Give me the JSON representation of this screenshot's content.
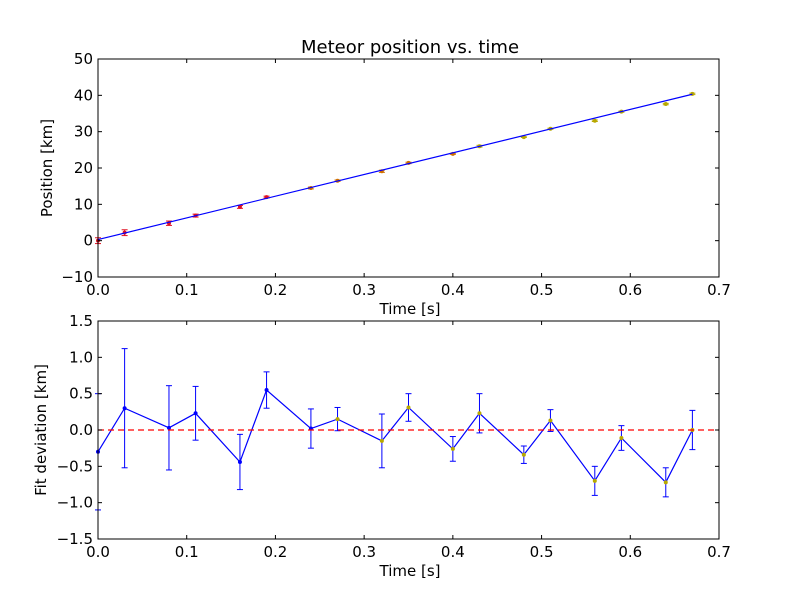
{
  "chart_data": [
    {
      "type": "scatter",
      "title": "Meteor position vs. time",
      "xlabel": "Time [s]",
      "ylabel": "Position [km]",
      "xlim": [
        0.0,
        0.7
      ],
      "ylim": [
        -10,
        50
      ],
      "xticks": [
        "0.0",
        "0.1",
        "0.2",
        "0.3",
        "0.4",
        "0.5",
        "0.6",
        "0.7"
      ],
      "yticks": [
        "−10",
        "0",
        "10",
        "20",
        "30",
        "40",
        "50"
      ],
      "xtick_values": [
        0.0,
        0.1,
        0.2,
        0.3,
        0.4,
        0.5,
        0.6,
        0.7
      ],
      "ytick_values": [
        -10,
        0,
        10,
        20,
        30,
        40,
        50
      ],
      "grid": false,
      "series": [
        {
          "kind": "errorbar-points",
          "color": "#e01020",
          "x": [
            0.0,
            0.03,
            0.08,
            0.11,
            0.16,
            0.19,
            0.24,
            0.27,
            0.32,
            0.35,
            0.4,
            0.43,
            0.48,
            0.51,
            0.56,
            0.59,
            0.64,
            0.67
          ],
          "y": [
            0.0,
            2.2,
            4.8,
            6.9,
            9.3,
            12.0,
            14.5,
            16.5,
            19.1,
            21.4,
            23.9,
            26.0,
            28.5,
            30.8,
            33.0,
            35.5,
            37.6,
            40.4
          ],
          "yerr": [
            0.8,
            0.8,
            0.6,
            0.4,
            0.4,
            0.25,
            0.25,
            0.2,
            0.3,
            0.2,
            0.15,
            0.25,
            0.1,
            0.15,
            0.2,
            0.15,
            0.2,
            0.2
          ]
        },
        {
          "kind": "fit-line",
          "color": "#0000ff",
          "x": [
            0.0,
            0.67
          ],
          "y": [
            0.3,
            40.3
          ]
        }
      ]
    },
    {
      "type": "line",
      "xlabel": "Time [s]",
      "ylabel": "Fit deviation [km]",
      "xlim": [
        0.0,
        0.7
      ],
      "ylim": [
        -1.5,
        1.5
      ],
      "xticks": [
        "0.0",
        "0.1",
        "0.2",
        "0.3",
        "0.4",
        "0.5",
        "0.6",
        "0.7"
      ],
      "yticks": [
        "−1.5",
        "−1.0",
        "−0.5",
        "0.0",
        "0.5",
        "1.0",
        "1.5"
      ],
      "xtick_values": [
        0.0,
        0.1,
        0.2,
        0.3,
        0.4,
        0.5,
        0.6,
        0.7
      ],
      "ytick_values": [
        -1.5,
        -1.0,
        -0.5,
        0.0,
        0.5,
        1.0,
        1.5
      ],
      "grid": false,
      "series": [
        {
          "kind": "errorbar-line",
          "color": "#0000ff",
          "x": [
            0.0,
            0.03,
            0.08,
            0.11,
            0.16,
            0.19,
            0.24,
            0.27,
            0.32,
            0.35,
            0.4,
            0.43,
            0.48,
            0.51,
            0.56,
            0.59,
            0.64,
            0.67
          ],
          "y": [
            -0.3,
            0.3,
            0.03,
            0.23,
            -0.44,
            0.55,
            0.02,
            0.15,
            -0.15,
            0.31,
            -0.26,
            0.23,
            -0.34,
            0.13,
            -0.7,
            -0.11,
            -0.72,
            0.0
          ],
          "yerr": [
            0.8,
            0.82,
            0.58,
            0.37,
            0.38,
            0.25,
            0.27,
            0.16,
            0.37,
            0.19,
            0.17,
            0.27,
            0.12,
            0.15,
            0.2,
            0.17,
            0.2,
            0.27
          ]
        },
        {
          "kind": "reference-line",
          "color": "#ff0000",
          "dashed": true,
          "y": 0.0
        }
      ]
    }
  ]
}
